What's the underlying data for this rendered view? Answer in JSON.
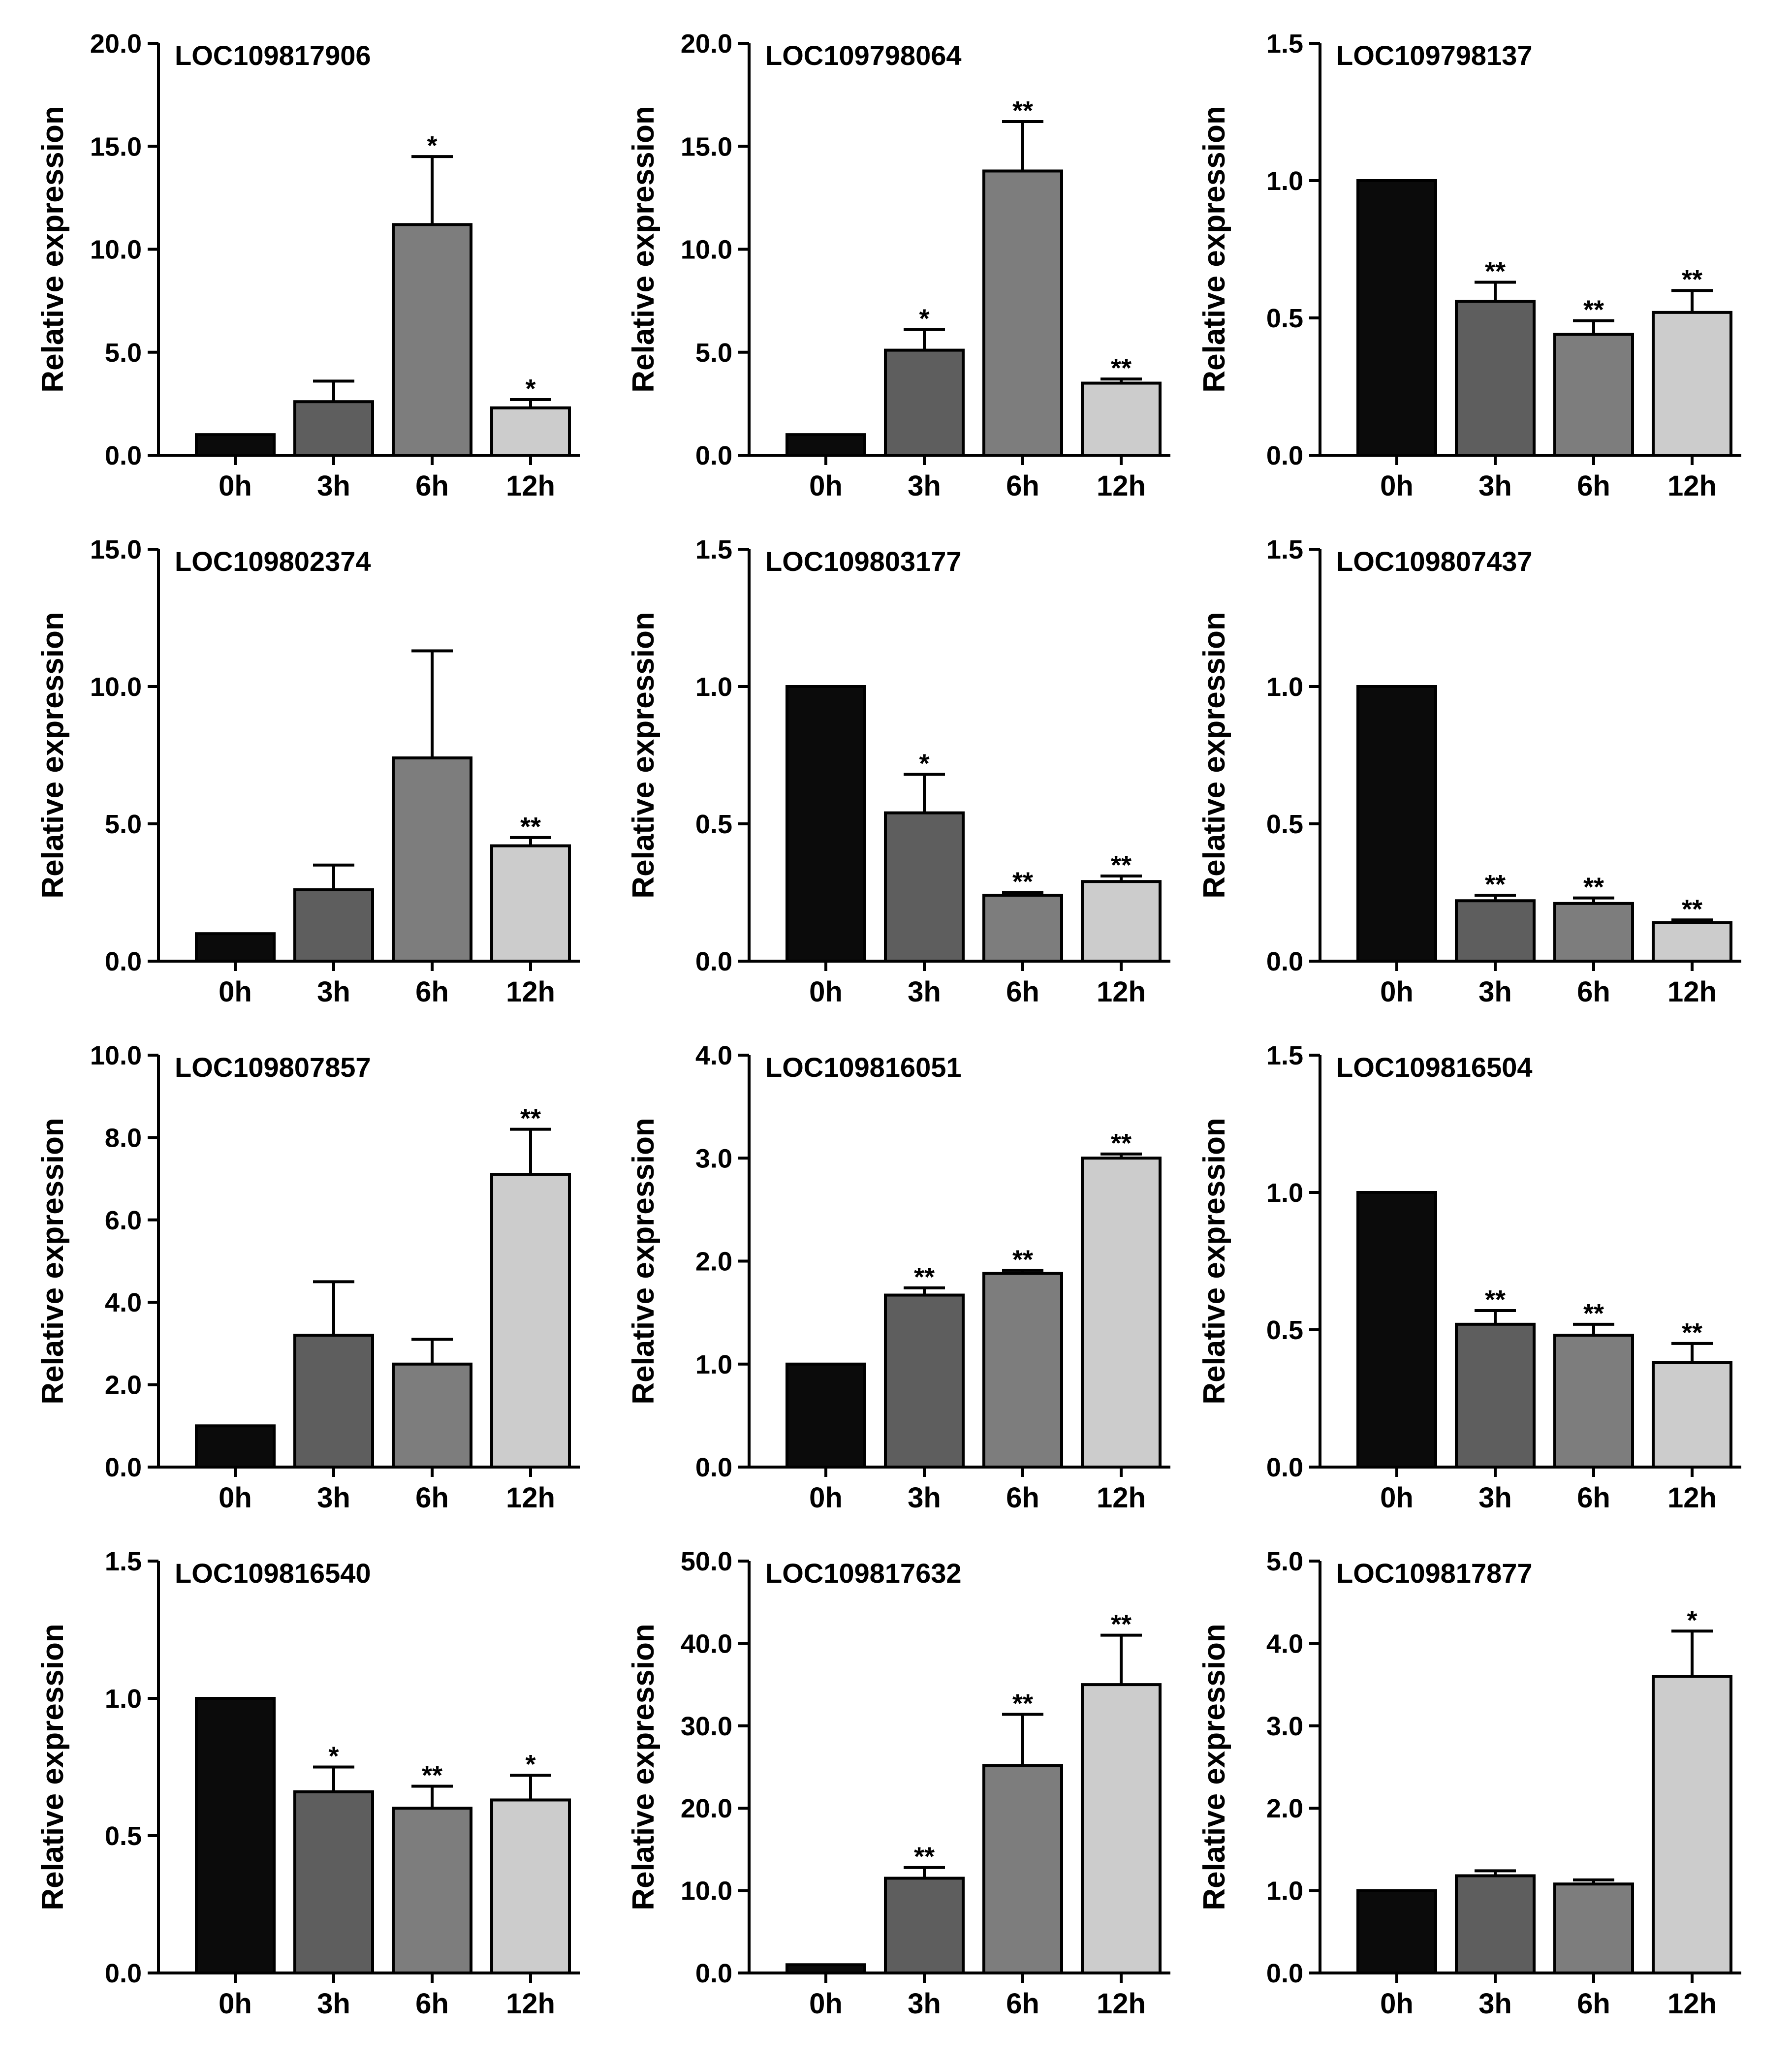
{
  "figure": {
    "background": "#ffffff"
  },
  "colors": {
    "0h": "#0b0b0b",
    "3h": "#5e5e5e",
    "6h": "#7d7d7d",
    "12h": "#cccccc"
  },
  "chart_data": [
    {
      "type": "bar",
      "title": "LOC109817906",
      "ylabel": "Relative expression",
      "xlabel": "",
      "categories": [
        "0h",
        "3h",
        "6h",
        "12h"
      ],
      "values": [
        1.0,
        2.6,
        11.2,
        2.3
      ],
      "errors": [
        0,
        1.0,
        3.3,
        0.4
      ],
      "significance": [
        "",
        "",
        "*",
        "*"
      ],
      "ylim": [
        0,
        20
      ],
      "yticks": [
        0,
        5,
        10,
        15,
        20
      ],
      "ytick_labels": [
        "0.0",
        "5.0",
        "10.0",
        "15.0",
        "20.0"
      ]
    },
    {
      "type": "bar",
      "title": "LOC109798064",
      "ylabel": "Relative expression",
      "xlabel": "",
      "categories": [
        "0h",
        "3h",
        "6h",
        "12h"
      ],
      "values": [
        1.0,
        5.1,
        13.8,
        3.5
      ],
      "errors": [
        0,
        1.0,
        2.4,
        0.2
      ],
      "significance": [
        "",
        "*",
        "**",
        "**"
      ],
      "ylim": [
        0,
        20
      ],
      "yticks": [
        0,
        5,
        10,
        15,
        20
      ],
      "ytick_labels": [
        "0.0",
        "5.0",
        "10.0",
        "15.0",
        "20.0"
      ]
    },
    {
      "type": "bar",
      "title": "LOC109798137",
      "ylabel": "Relative expression",
      "xlabel": "",
      "categories": [
        "0h",
        "3h",
        "6h",
        "12h"
      ],
      "values": [
        1.0,
        0.56,
        0.44,
        0.52
      ],
      "errors": [
        0,
        0.07,
        0.05,
        0.08
      ],
      "significance": [
        "",
        "**",
        "**",
        "**"
      ],
      "ylim": [
        0,
        1.5
      ],
      "yticks": [
        0,
        0.5,
        1.0,
        1.5
      ],
      "ytick_labels": [
        "0.0",
        "0.5",
        "1.0",
        "1.5"
      ]
    },
    {
      "type": "bar",
      "title": "LOC109802374",
      "ylabel": "Relative expression",
      "xlabel": "",
      "categories": [
        "0h",
        "3h",
        "6h",
        "12h"
      ],
      "values": [
        1.0,
        2.6,
        7.4,
        4.2
      ],
      "errors": [
        0,
        0.9,
        3.9,
        0.3
      ],
      "significance": [
        "",
        "",
        "",
        "**"
      ],
      "ylim": [
        0,
        15
      ],
      "yticks": [
        0,
        5,
        10,
        15
      ],
      "ytick_labels": [
        "0.0",
        "5.0",
        "10.0",
        "15.0"
      ]
    },
    {
      "type": "bar",
      "title": "LOC109803177",
      "ylabel": "Relative expression",
      "xlabel": "",
      "categories": [
        "0h",
        "3h",
        "6h",
        "12h"
      ],
      "values": [
        1.0,
        0.54,
        0.24,
        0.29
      ],
      "errors": [
        0,
        0.14,
        0.01,
        0.02
      ],
      "significance": [
        "",
        "*",
        "**",
        "**"
      ],
      "ylim": [
        0,
        1.5
      ],
      "yticks": [
        0,
        0.5,
        1.0,
        1.5
      ],
      "ytick_labels": [
        "0.0",
        "0.5",
        "1.0",
        "1.5"
      ]
    },
    {
      "type": "bar",
      "title": "LOC109807437",
      "ylabel": "Relative expression",
      "xlabel": "",
      "categories": [
        "0h",
        "3h",
        "6h",
        "12h"
      ],
      "values": [
        1.0,
        0.22,
        0.21,
        0.14
      ],
      "errors": [
        0,
        0.02,
        0.02,
        0.01
      ],
      "significance": [
        "",
        "**",
        "**",
        "**"
      ],
      "ylim": [
        0,
        1.5
      ],
      "yticks": [
        0,
        0.5,
        1.0,
        1.5
      ],
      "ytick_labels": [
        "0.0",
        "0.5",
        "1.0",
        "1.5"
      ]
    },
    {
      "type": "bar",
      "title": "LOC109807857",
      "ylabel": "Relative expression",
      "xlabel": "",
      "categories": [
        "0h",
        "3h",
        "6h",
        "12h"
      ],
      "values": [
        1.0,
        3.2,
        2.5,
        7.1
      ],
      "errors": [
        0,
        1.3,
        0.6,
        1.1
      ],
      "significance": [
        "",
        "",
        "",
        "**"
      ],
      "ylim": [
        0,
        10
      ],
      "yticks": [
        0,
        2,
        4,
        6,
        8,
        10
      ],
      "ytick_labels": [
        "0.0",
        "2.0",
        "4.0",
        "6.0",
        "8.0",
        "10.0"
      ]
    },
    {
      "type": "bar",
      "title": "LOC109816051",
      "ylabel": "Relative expression",
      "xlabel": "",
      "categories": [
        "0h",
        "3h",
        "6h",
        "12h"
      ],
      "values": [
        1.0,
        1.67,
        1.88,
        3.0
      ],
      "errors": [
        0,
        0.07,
        0.03,
        0.04
      ],
      "significance": [
        "",
        "**",
        "**",
        "**"
      ],
      "ylim": [
        0,
        4
      ],
      "yticks": [
        0,
        1,
        2,
        3,
        4
      ],
      "ytick_labels": [
        "0.0",
        "1.0",
        "2.0",
        "3.0",
        "4.0"
      ]
    },
    {
      "type": "bar",
      "title": "LOC109816504",
      "ylabel": "Relative expression",
      "xlabel": "",
      "categories": [
        "0h",
        "3h",
        "6h",
        "12h"
      ],
      "values": [
        1.0,
        0.52,
        0.48,
        0.38
      ],
      "errors": [
        0,
        0.05,
        0.04,
        0.07
      ],
      "significance": [
        "",
        "**",
        "**",
        "**"
      ],
      "ylim": [
        0,
        1.5
      ],
      "yticks": [
        0,
        0.5,
        1.0,
        1.5
      ],
      "ytick_labels": [
        "0.0",
        "0.5",
        "1.0",
        "1.5"
      ]
    },
    {
      "type": "bar",
      "title": "LOC109816540",
      "ylabel": "Relative expression",
      "xlabel": "",
      "categories": [
        "0h",
        "3h",
        "6h",
        "12h"
      ],
      "values": [
        1.0,
        0.66,
        0.6,
        0.63
      ],
      "errors": [
        0,
        0.09,
        0.08,
        0.09
      ],
      "significance": [
        "",
        "*",
        "**",
        "*"
      ],
      "ylim": [
        0,
        1.5
      ],
      "yticks": [
        0,
        0.5,
        1.0,
        1.5
      ],
      "ytick_labels": [
        "0.0",
        "0.5",
        "1.0",
        "1.5"
      ]
    },
    {
      "type": "bar",
      "title": "LOC109817632",
      "ylabel": "Relative expression",
      "xlabel": "",
      "categories": [
        "0h",
        "3h",
        "6h",
        "12h"
      ],
      "values": [
        1.0,
        11.5,
        25.2,
        35.0
      ],
      "errors": [
        0,
        1.3,
        6.2,
        6.0
      ],
      "significance": [
        "",
        "**",
        "**",
        "**"
      ],
      "ylim": [
        0,
        50
      ],
      "yticks": [
        0,
        10,
        20,
        30,
        40,
        50
      ],
      "ytick_labels": [
        "0.0",
        "10.0",
        "20.0",
        "30.0",
        "40.0",
        "50.0"
      ]
    },
    {
      "type": "bar",
      "title": "LOC109817877",
      "ylabel": "Relative expression",
      "xlabel": "",
      "categories": [
        "0h",
        "3h",
        "6h",
        "12h"
      ],
      "values": [
        1.0,
        1.18,
        1.08,
        3.6
      ],
      "errors": [
        0,
        0.06,
        0.05,
        0.55
      ],
      "significance": [
        "",
        "",
        "",
        "*"
      ],
      "ylim": [
        0,
        5
      ],
      "yticks": [
        0,
        1,
        2,
        3,
        4,
        5
      ],
      "ytick_labels": [
        "0.0",
        "1.0",
        "2.0",
        "3.0",
        "4.0",
        "5.0"
      ]
    }
  ]
}
